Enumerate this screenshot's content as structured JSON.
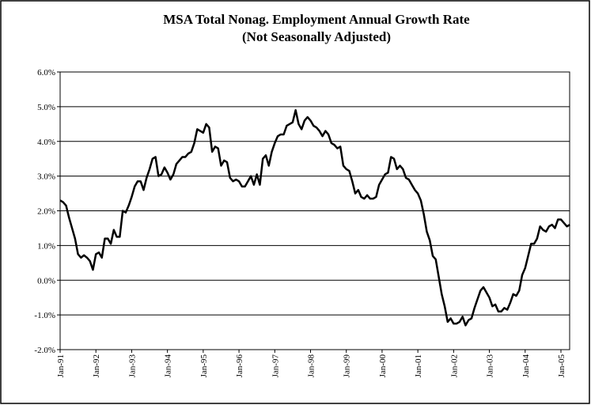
{
  "chart_data": {
    "type": "line",
    "title": "MSA Total Nonag. Employment Annual Growth Rate",
    "subtitle": "(Not Seasonally Adjusted)",
    "categories": [
      "Jan-91",
      null,
      null,
      null,
      null,
      null,
      null,
      null,
      null,
      null,
      null,
      null,
      "Jan-92",
      null,
      null,
      null,
      null,
      null,
      null,
      null,
      null,
      null,
      null,
      null,
      "Jan-93",
      null,
      null,
      null,
      null,
      null,
      null,
      null,
      null,
      null,
      null,
      null,
      "Jan-94",
      null,
      null,
      null,
      null,
      null,
      null,
      null,
      null,
      null,
      null,
      null,
      "Jan-95",
      null,
      null,
      null,
      null,
      null,
      null,
      null,
      null,
      null,
      null,
      null,
      "Jan-96",
      null,
      null,
      null,
      null,
      null,
      null,
      null,
      null,
      null,
      null,
      null,
      "Jan-97",
      null,
      null,
      null,
      null,
      null,
      null,
      null,
      null,
      null,
      null,
      null,
      "Jan-98",
      null,
      null,
      null,
      null,
      null,
      null,
      null,
      null,
      null,
      null,
      null,
      "Jan-99",
      null,
      null,
      null,
      null,
      null,
      null,
      null,
      null,
      null,
      null,
      null,
      "Jan-00",
      null,
      null,
      null,
      null,
      null,
      null,
      null,
      null,
      null,
      null,
      null,
      "Jan-01",
      null,
      null,
      null,
      null,
      null,
      null,
      null,
      null,
      null,
      null,
      null,
      "Jan-02",
      null,
      null,
      null,
      null,
      null,
      null,
      null,
      null,
      null,
      null,
      null,
      "Jan-03",
      null,
      null,
      null,
      null,
      null,
      null,
      null,
      null,
      null,
      null,
      null,
      "Jan-04",
      null,
      null,
      null,
      null,
      null,
      null,
      null,
      null,
      null,
      null,
      null,
      "Jan-05",
      null,
      null,
      null
    ],
    "values": [
      2.3,
      2.25,
      2.15,
      1.8,
      1.5,
      1.2,
      0.75,
      0.65,
      0.72,
      0.65,
      0.55,
      0.3,
      0.75,
      0.8,
      0.65,
      1.2,
      1.2,
      1.05,
      1.45,
      1.25,
      1.25,
      2.0,
      1.95,
      2.15,
      2.4,
      2.7,
      2.85,
      2.85,
      2.6,
      2.95,
      3.2,
      3.5,
      3.55,
      3.0,
      3.05,
      3.25,
      3.1,
      2.9,
      3.05,
      3.35,
      3.45,
      3.55,
      3.55,
      3.65,
      3.7,
      3.95,
      4.35,
      4.3,
      4.25,
      4.5,
      4.4,
      3.7,
      3.85,
      3.8,
      3.3,
      3.45,
      3.4,
      2.95,
      2.85,
      2.9,
      2.85,
      2.7,
      2.7,
      2.85,
      3.0,
      2.75,
      3.05,
      2.75,
      3.5,
      3.6,
      3.3,
      3.7,
      3.95,
      4.15,
      4.2,
      4.2,
      4.45,
      4.5,
      4.55,
      4.9,
      4.5,
      4.35,
      4.6,
      4.7,
      4.6,
      4.45,
      4.4,
      4.3,
      4.15,
      4.3,
      4.2,
      3.95,
      3.9,
      3.8,
      3.85,
      3.3,
      3.2,
      3.15,
      2.85,
      2.5,
      2.6,
      2.4,
      2.35,
      2.45,
      2.35,
      2.35,
      2.4,
      2.75,
      2.9,
      3.05,
      3.1,
      3.55,
      3.5,
      3.2,
      3.3,
      3.2,
      2.95,
      2.9,
      2.75,
      2.6,
      2.5,
      2.3,
      1.9,
      1.4,
      1.15,
      0.7,
      0.6,
      0.1,
      -0.4,
      -0.75,
      -1.2,
      -1.1,
      -1.25,
      -1.25,
      -1.2,
      -1.05,
      -1.3,
      -1.15,
      -1.1,
      -0.8,
      -0.55,
      -0.3,
      -0.2,
      -0.35,
      -0.5,
      -0.75,
      -0.7,
      -0.9,
      -0.9,
      -0.8,
      -0.85,
      -0.65,
      -0.4,
      -0.45,
      -0.3,
      0.15,
      0.35,
      0.7,
      1.05,
      1.05,
      1.2,
      1.55,
      1.45,
      1.4,
      1.55,
      1.6,
      1.5,
      1.75,
      1.75,
      1.65,
      1.55,
      1.6
    ],
    "color": "#000000",
    "ylim": [
      -2,
      6
    ],
    "yticks": [
      {
        "value": -2,
        "label": "-2.0%"
      },
      {
        "value": -1,
        "label": "-1.0%"
      },
      {
        "value": 0,
        "label": "0.0%"
      },
      {
        "value": 1,
        "label": "1.0%"
      },
      {
        "value": 2,
        "label": "2.0%"
      },
      {
        "value": 3,
        "label": "3.0%"
      },
      {
        "value": 4,
        "label": "4.0%"
      },
      {
        "value": 5,
        "label": "5.0%"
      },
      {
        "value": 6,
        "label": "6.0%"
      }
    ],
    "grid": true
  }
}
